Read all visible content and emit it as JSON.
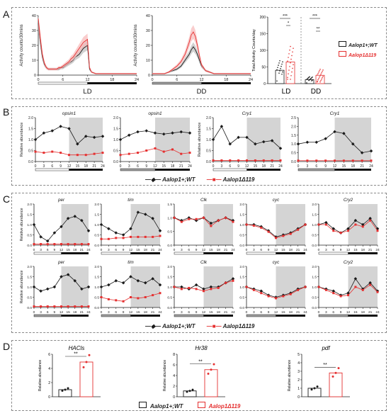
{
  "panels": {
    "A": "A",
    "B": "B",
    "C": "C",
    "D": "D"
  },
  "colors": {
    "wt": "#1a1a1a",
    "mut": "#e53030",
    "shade": "#d4d4d4",
    "light_bar": "#ffffff",
    "dark_bar": "#111111",
    "grey_bar": "#9e9e9e",
    "mut_band": "#f7b8b8",
    "wt_band": "#bdbdbd"
  },
  "legends": {
    "wt": "Aalop1+;WT",
    "mut": "Aalop1Δ119"
  },
  "chart_data": [
    {
      "id": "A-LD",
      "type": "line",
      "ylabel": "Activity counts/30mins",
      "xlabel": "LD",
      "ylim": [
        0,
        40
      ],
      "yticks": [
        0,
        10,
        20,
        30,
        40
      ],
      "xlim": [
        0,
        24
      ],
      "xticks": [
        0,
        6,
        12,
        18,
        24
      ],
      "x": [
        0,
        0.5,
        1,
        1.5,
        2,
        2.5,
        3,
        3.5,
        4,
        4.5,
        5,
        5.5,
        6,
        6.5,
        7,
        7.5,
        8,
        8.5,
        9,
        9.5,
        10,
        10.5,
        11,
        11.5,
        12,
        12.5,
        13,
        14,
        15,
        16,
        17,
        18,
        19,
        20,
        21,
        22,
        23,
        24
      ],
      "series": [
        {
          "name": "Aalop1+;WT",
          "values": [
            35,
            22,
            12,
            7,
            5,
            4,
            4,
            4,
            4,
            4,
            4,
            5,
            5,
            6,
            7,
            8,
            9,
            10,
            12,
            13,
            14,
            16,
            18,
            19,
            20,
            4,
            2,
            1,
            1,
            1,
            1,
            1,
            1,
            1,
            1,
            1,
            1,
            1
          ]
        },
        {
          "name": "Aalop1Δ119",
          "values": [
            38,
            25,
            14,
            8,
            5,
            4,
            4,
            4,
            4,
            4,
            5,
            5,
            6,
            7,
            8,
            9,
            11,
            12,
            14,
            16,
            18,
            20,
            22,
            23,
            24,
            5,
            2,
            1,
            1,
            1,
            1,
            1,
            1,
            1,
            1,
            1,
            1,
            1
          ]
        }
      ]
    },
    {
      "id": "A-DD",
      "type": "line",
      "ylabel": "Activity counts/30mins",
      "xlabel": "DD",
      "ylim": [
        0,
        40
      ],
      "yticks": [
        0,
        10,
        20,
        30,
        40
      ],
      "xlim": [
        0,
        24
      ],
      "xticks": [
        0,
        6,
        12,
        18,
        24
      ],
      "x": [
        0,
        1,
        2,
        3,
        4,
        5,
        6,
        7,
        8,
        9,
        9.5,
        10,
        10.5,
        11,
        11.5,
        12,
        13,
        14,
        15,
        16,
        17,
        18,
        19,
        20,
        21,
        22,
        23,
        24
      ],
      "series": [
        {
          "name": "Aalop1+;WT",
          "values": [
            1,
            1,
            1,
            1,
            2,
            3,
            4,
            6,
            10,
            14,
            17,
            19,
            17,
            14,
            10,
            6,
            3,
            2,
            1,
            1,
            1,
            1,
            1,
            1,
            1,
            1,
            1,
            1
          ]
        },
        {
          "name": "Aalop1Δ119",
          "values": [
            1,
            1,
            1,
            1,
            2,
            4,
            6,
            9,
            14,
            22,
            27,
            29,
            26,
            20,
            13,
            7,
            3,
            2,
            1,
            1,
            1,
            1,
            1,
            1,
            1,
            1,
            1,
            1
          ]
        }
      ]
    },
    {
      "id": "A-total",
      "type": "bar",
      "ylabel": "Total Activity Counts/day",
      "ylim": [
        0,
        200
      ],
      "yticks": [
        0,
        50,
        100,
        150,
        200
      ],
      "categories": [
        "LD",
        "DD"
      ],
      "series": [
        {
          "name": "Aalop1+;WT",
          "values": [
            40,
            12
          ]
        },
        {
          "name": "Aalop1Δ119",
          "values": [
            65,
            25
          ]
        }
      ],
      "annotations": [
        "***",
        "*",
        "***",
        "**"
      ]
    },
    {
      "id": "B-opsin1-LD",
      "type": "line",
      "title": "opsin1",
      "ylabel": "Relative abundance",
      "ylim": [
        0,
        2.0
      ],
      "yticks": [
        0,
        0.5,
        1.0,
        1.5,
        2.0
      ],
      "x": [
        "0",
        "3",
        "6",
        "9",
        "12",
        "15",
        "18",
        "21",
        "24"
      ],
      "series": [
        {
          "name": "Aalop1+;WT",
          "values": [
            1.0,
            1.3,
            1.4,
            1.6,
            1.5,
            0.8,
            1.15,
            1.1,
            1.15
          ]
        },
        {
          "name": "Aalop1Δ119",
          "values": [
            0.45,
            0.4,
            0.45,
            0.4,
            0.3,
            0.3,
            0.3,
            0.35,
            0.4
          ]
        }
      ]
    },
    {
      "id": "B-opsin1-DD",
      "type": "line",
      "title": "opsin1",
      "ylim": [
        0,
        2.0
      ],
      "yticks": [
        0,
        0.5,
        1.0,
        1.5,
        2.0
      ],
      "x": [
        "0",
        "3",
        "6",
        "9",
        "12",
        "15",
        "18",
        "21",
        "24"
      ],
      "series": [
        {
          "name": "Aalop1+;WT",
          "values": [
            1.0,
            1.2,
            1.35,
            1.4,
            1.3,
            1.25,
            1.3,
            1.35,
            1.3
          ]
        },
        {
          "name": "Aalop1Δ119",
          "values": [
            0.3,
            0.35,
            0.4,
            0.5,
            0.6,
            0.45,
            0.55,
            0.35,
            0.4
          ]
        }
      ]
    },
    {
      "id": "B-Cry1-LD",
      "type": "line",
      "title": "Cry1",
      "ylabel": "Relative abundance",
      "ylim": [
        0,
        2.0
      ],
      "yticks": [
        0,
        0.5,
        1.0,
        1.5,
        2.0
      ],
      "x": [
        "0",
        "3",
        "6",
        "9",
        "12",
        "15",
        "18",
        "21",
        "24"
      ],
      "series": [
        {
          "name": "Aalop1+;WT",
          "values": [
            1.0,
            1.6,
            0.8,
            1.1,
            1.1,
            0.8,
            0.9,
            0.95,
            0.6
          ]
        },
        {
          "name": "Aalop1Δ119",
          "values": [
            0.05,
            0.05,
            0.05,
            0.05,
            0.05,
            0.05,
            0.05,
            0.05,
            0.05
          ]
        }
      ]
    },
    {
      "id": "B-Cry1-DD",
      "type": "line",
      "title": "Cry1",
      "ylim": [
        0,
        2.5
      ],
      "yticks": [
        0,
        0.5,
        1.0,
        1.5,
        2.0,
        2.5
      ],
      "x": [
        "0",
        "3",
        "6",
        "9",
        "12",
        "15",
        "18",
        "21",
        "24"
      ],
      "series": [
        {
          "name": "Aalop1+;WT",
          "values": [
            1.0,
            1.1,
            1.1,
            1.3,
            1.7,
            1.6,
            1.0,
            0.5,
            0.6
          ]
        },
        {
          "name": "Aalop1Δ119",
          "values": [
            0.05,
            0.05,
            0.05,
            0.05,
            0.05,
            0.05,
            0.05,
            0.05,
            0.05
          ]
        }
      ]
    },
    {
      "id": "C-per-LD",
      "type": "line",
      "title": "per",
      "ylabel": "Relative abundance",
      "ylim": [
        0,
        2.0
      ],
      "yticks": [
        0,
        0.5,
        1.0,
        1.5,
        2.0
      ],
      "x": [
        "0",
        "3",
        "6",
        "9",
        "12",
        "15",
        "18",
        "21",
        "24"
      ],
      "series": [
        {
          "name": "Aalop1+;WT",
          "values": [
            1.0,
            0.4,
            0.2,
            0.6,
            0.9,
            1.3,
            1.4,
            1.2,
            0.7
          ]
        },
        {
          "name": "Aalop1Δ119",
          "values": [
            0.05,
            0.05,
            0.05,
            0.05,
            0.05,
            0.05,
            0.05,
            0.05,
            0.05
          ]
        }
      ]
    },
    {
      "id": "C-tim-LD",
      "type": "line",
      "title": "tim",
      "ylim": [
        0,
        2.0
      ],
      "yticks": [
        0,
        0.5,
        1.0,
        1.5,
        2.0
      ],
      "x": [
        "0",
        "3",
        "6",
        "9",
        "12",
        "15",
        "18",
        "21",
        "24"
      ],
      "series": [
        {
          "name": "Aalop1+;WT",
          "values": [
            1.0,
            0.8,
            0.6,
            0.5,
            0.8,
            1.6,
            1.5,
            1.3,
            0.7
          ]
        },
        {
          "name": "Aalop1Δ119",
          "values": [
            0.3,
            0.3,
            0.35,
            0.35,
            0.4,
            0.4,
            0.4,
            0.4,
            0.45
          ]
        }
      ]
    },
    {
      "id": "C-Clk-LD",
      "type": "line",
      "title": "Clk",
      "ylim": [
        0,
        1.5
      ],
      "yticks": [
        0,
        0.5,
        1.0,
        1.5
      ],
      "x": [
        "0",
        "3",
        "6",
        "9",
        "12",
        "15",
        "18",
        "21",
        "24"
      ],
      "series": [
        {
          "name": "Aalop1+;WT",
          "values": [
            1.0,
            0.9,
            1.0,
            0.9,
            1.0,
            0.8,
            0.9,
            1.0,
            0.9
          ]
        },
        {
          "name": "Aalop1Δ119",
          "values": [
            1.0,
            0.85,
            0.95,
            0.95,
            1.0,
            0.7,
            0.9,
            1.0,
            0.85
          ]
        }
      ]
    },
    {
      "id": "C-cyc-LD",
      "type": "line",
      "title": "cyc",
      "ylim": [
        0,
        2.0
      ],
      "yticks": [
        0,
        0.5,
        1.0,
        1.5,
        2.0
      ],
      "x": [
        "0",
        "3",
        "6",
        "9",
        "12",
        "15",
        "18",
        "21",
        "24"
      ],
      "series": [
        {
          "name": "Aalop1+;WT",
          "values": [
            1.0,
            1.0,
            0.9,
            0.7,
            0.4,
            0.5,
            0.6,
            0.8,
            1.0
          ]
        },
        {
          "name": "Aalop1Δ119",
          "values": [
            1.0,
            0.95,
            0.85,
            0.65,
            0.35,
            0.45,
            0.55,
            0.75,
            1.0
          ]
        }
      ]
    },
    {
      "id": "C-Cry2-LD",
      "type": "line",
      "title": "Cry2",
      "ylim": [
        0,
        2.0
      ],
      "yticks": [
        0,
        0.5,
        1.0,
        1.5,
        2.0
      ],
      "x": [
        "0",
        "3",
        "6",
        "9",
        "12",
        "15",
        "18",
        "21",
        "24"
      ],
      "series": [
        {
          "name": "Aalop1+;WT",
          "values": [
            1.0,
            1.1,
            0.8,
            0.6,
            0.8,
            1.2,
            1.0,
            1.3,
            0.8
          ]
        },
        {
          "name": "Aalop1Δ119",
          "values": [
            1.0,
            1.0,
            0.7,
            0.6,
            0.7,
            1.0,
            0.9,
            1.2,
            0.7
          ]
        }
      ]
    },
    {
      "id": "C-per-DD",
      "type": "line",
      "title": "per",
      "ylabel": "Relative abundance",
      "ylim": [
        0,
        2.0
      ],
      "yticks": [
        0,
        0.5,
        1.0,
        1.5,
        2.0
      ],
      "x": [
        "0",
        "3",
        "6",
        "9",
        "12",
        "15",
        "18",
        "21",
        "24"
      ],
      "series": [
        {
          "name": "Aalop1+;WT",
          "values": [
            1.0,
            0.8,
            0.9,
            1.0,
            1.5,
            1.6,
            1.3,
            0.9,
            1.0
          ]
        },
        {
          "name": "Aalop1Δ119",
          "values": [
            0.05,
            0.05,
            0.05,
            0.05,
            0.05,
            0.05,
            0.05,
            0.05,
            0.05
          ]
        }
      ]
    },
    {
      "id": "C-tim-DD",
      "type": "line",
      "title": "tim",
      "ylim": [
        0,
        2.0
      ],
      "yticks": [
        0,
        0.5,
        1.0,
        1.5,
        2.0
      ],
      "x": [
        "0",
        "3",
        "6",
        "9",
        "12",
        "15",
        "18",
        "21",
        "24"
      ],
      "series": [
        {
          "name": "Aalop1+;WT",
          "values": [
            1.0,
            1.1,
            1.3,
            1.2,
            1.5,
            1.3,
            1.2,
            1.4,
            1.1
          ]
        },
        {
          "name": "Aalop1Δ119",
          "values": [
            0.5,
            0.4,
            0.35,
            0.3,
            0.5,
            0.45,
            0.5,
            0.6,
            0.7
          ]
        }
      ]
    },
    {
      "id": "C-Clk-DD",
      "type": "line",
      "title": "Clk",
      "ylim": [
        0,
        2.0
      ],
      "yticks": [
        0,
        0.5,
        1.0,
        1.5,
        2.0
      ],
      "x": [
        "0",
        "3",
        "6",
        "9",
        "12",
        "15",
        "18",
        "21",
        "24"
      ],
      "series": [
        {
          "name": "Aalop1+;WT",
          "values": [
            1.0,
            1.0,
            0.9,
            1.1,
            0.9,
            1.0,
            1.0,
            1.2,
            1.4
          ]
        },
        {
          "name": "Aalop1Δ119",
          "values": [
            1.0,
            0.9,
            0.95,
            0.9,
            0.8,
            0.9,
            0.95,
            1.2,
            1.3
          ]
        }
      ]
    },
    {
      "id": "C-cyc-DD",
      "type": "line",
      "title": "cyc",
      "ylim": [
        0,
        2.0
      ],
      "yticks": [
        0,
        0.5,
        1.0,
        1.5,
        2.0
      ],
      "x": [
        "0",
        "3",
        "6",
        "9",
        "12",
        "15",
        "18",
        "21",
        "24"
      ],
      "series": [
        {
          "name": "Aalop1+;WT",
          "values": [
            1.0,
            0.9,
            0.8,
            0.6,
            0.5,
            0.6,
            0.7,
            0.9,
            1.0
          ]
        },
        {
          "name": "Aalop1Δ119",
          "values": [
            1.0,
            0.85,
            0.7,
            0.55,
            0.45,
            0.55,
            0.65,
            0.85,
            1.0
          ]
        }
      ]
    },
    {
      "id": "C-Cry2-DD",
      "type": "line",
      "title": "Cry2",
      "ylim": [
        0,
        2.0
      ],
      "yticks": [
        0,
        0.5,
        1.0,
        1.5,
        2.0
      ],
      "x": [
        "0",
        "3",
        "6",
        "9",
        "12",
        "15",
        "18",
        "21",
        "24"
      ],
      "series": [
        {
          "name": "Aalop1+;WT",
          "values": [
            1.0,
            0.9,
            0.8,
            0.6,
            0.7,
            1.4,
            0.9,
            1.2,
            0.8
          ]
        },
        {
          "name": "Aalop1Δ119",
          "values": [
            1.0,
            0.85,
            0.7,
            0.55,
            0.6,
            1.0,
            0.85,
            1.1,
            0.75
          ]
        }
      ]
    },
    {
      "id": "D-HACls",
      "type": "bar",
      "title": "HACls",
      "ylabel": "Relative abundance",
      "ylim": [
        0,
        6
      ],
      "yticks": [
        0,
        2,
        4,
        6
      ],
      "categories": [
        "Aalop1+;WT",
        "Aalop1Δ119"
      ],
      "values": [
        1.0,
        4.9
      ],
      "annotation": "**"
    },
    {
      "id": "D-Hr38",
      "type": "bar",
      "title": "Hr38",
      "ylabel": "Relative abundance",
      "ylim": [
        0,
        8
      ],
      "yticks": [
        0,
        2,
        4,
        6,
        8
      ],
      "categories": [
        "Aalop1+;WT",
        "Aalop1Δ119"
      ],
      "values": [
        1.1,
        5.1
      ],
      "annotation": "**"
    },
    {
      "id": "D-pdf",
      "type": "bar",
      "title": "pdf",
      "ylabel": "Relative abundance",
      "ylim": [
        0,
        5
      ],
      "yticks": [
        0,
        1,
        2,
        3,
        4,
        5
      ],
      "categories": [
        "Aalop1+;WT",
        "Aalop1Δ119"
      ],
      "values": [
        1.0,
        2.8
      ],
      "annotation": "**"
    }
  ]
}
